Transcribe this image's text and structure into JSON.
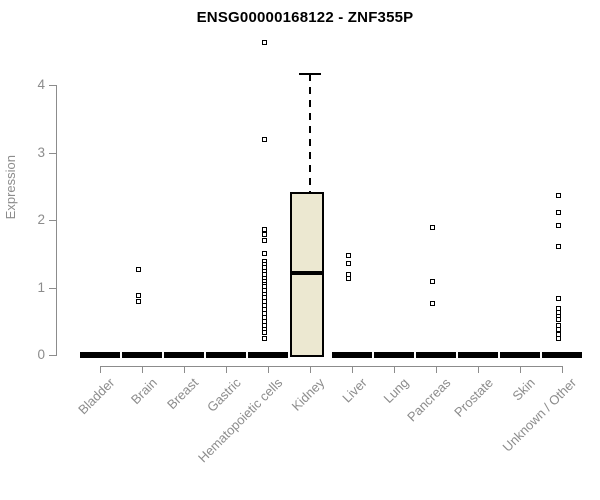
{
  "chart_data": {
    "type": "boxplot",
    "title": "ENSG00000168122 - ZNF355P",
    "ylabel": "Expression",
    "xlabel": "",
    "ylim": [
      0,
      4.7
    ],
    "yticks": [
      0,
      1,
      2,
      3,
      4
    ],
    "grid": false,
    "legend": "none",
    "axis_color": "#8c8c8c",
    "point_color": "#000000",
    "box_fill_color": "#ece8d1",
    "box_border_color": "#000000",
    "categories": [
      "Bladder",
      "Brain",
      "Breast",
      "Gastric",
      "Hematopoietic cells",
      "Kidney",
      "Liver",
      "Lung",
      "Pancreas",
      "Prostate",
      "Skin",
      "Unknown / Other"
    ],
    "groups": [
      {
        "category": "Bladder",
        "zero_cluster": true,
        "points": []
      },
      {
        "category": "Brain",
        "zero_cluster": true,
        "points": [
          1.27,
          0.88,
          0.8
        ]
      },
      {
        "category": "Breast",
        "zero_cluster": true,
        "points": []
      },
      {
        "category": "Gastric",
        "zero_cluster": true,
        "points": []
      },
      {
        "category": "Hematopoietic cells",
        "zero_cluster": true,
        "points": [
          4.63,
          3.2,
          1.86,
          1.78,
          1.7,
          1.51,
          1.39,
          1.34,
          1.29,
          1.24,
          1.19,
          1.14,
          1.09,
          1.05,
          1.01,
          0.95,
          0.9,
          0.85,
          0.8,
          0.74,
          0.68,
          0.62,
          0.56,
          0.5,
          0.44,
          0.38,
          0.33,
          0.25
        ]
      },
      {
        "category": "Kidney",
        "zero_cluster": false,
        "points": [],
        "box": {
          "q1": 0,
          "median": 1.21,
          "q3": 2.41,
          "whisker_low": 0,
          "whisker_high": 4.17
        }
      },
      {
        "category": "Liver",
        "zero_cluster": true,
        "points": [
          1.48,
          1.35,
          1.19,
          1.13
        ]
      },
      {
        "category": "Lung",
        "zero_cluster": true,
        "points": []
      },
      {
        "category": "Pancreas",
        "zero_cluster": true,
        "points": [
          1.89,
          1.09,
          0.76
        ]
      },
      {
        "category": "Prostate",
        "zero_cluster": true,
        "points": []
      },
      {
        "category": "Skin",
        "zero_cluster": true,
        "points": []
      },
      {
        "category": "Unknown / Other",
        "zero_cluster": true,
        "points": [
          2.37,
          2.11,
          1.92,
          1.61,
          0.84,
          0.69,
          0.63,
          0.57,
          0.52,
          0.44,
          0.38,
          0.31,
          0.25
        ]
      }
    ]
  }
}
